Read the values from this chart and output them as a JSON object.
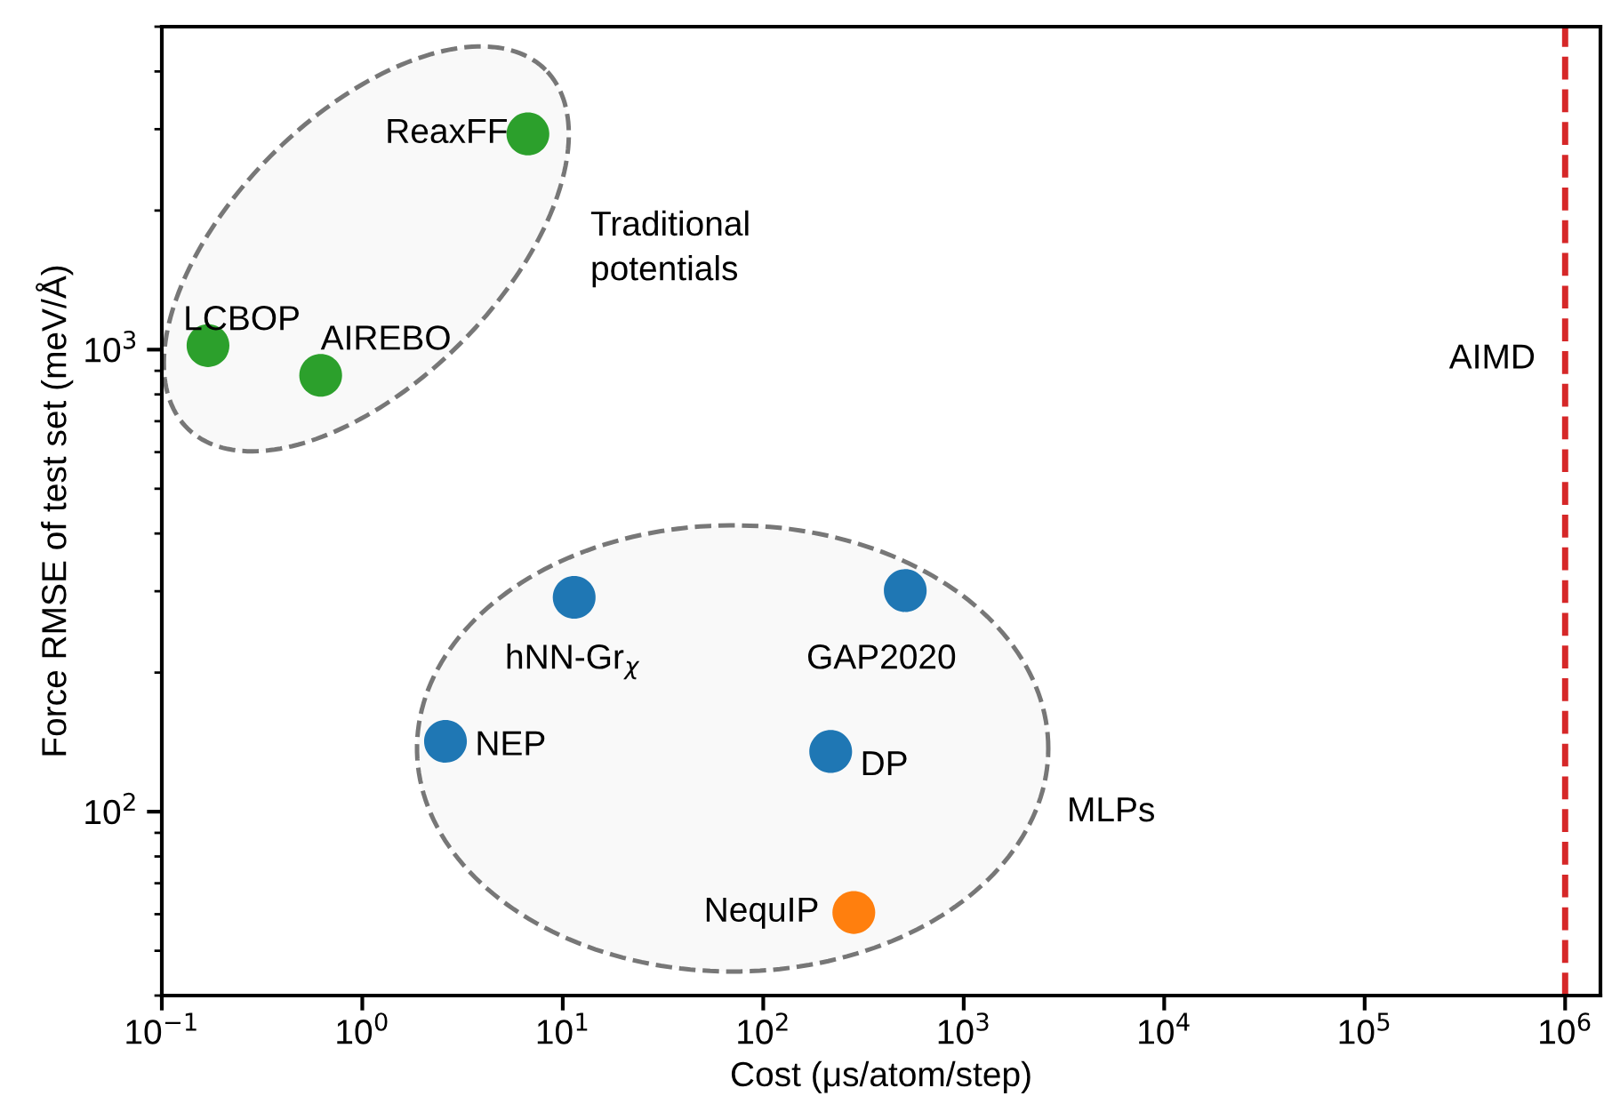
{
  "chart_data": {
    "type": "scatter",
    "xlabel": "Cost (μs/atom/step)",
    "ylabel": "Force RMSE of test set (meV/Å)",
    "log": "xy",
    "xlim": [
      0.1,
      1500000
    ],
    "ylim": [
      40,
      5000
    ],
    "xticks": [
      {
        "value": 0.1,
        "label": "10$^{−1}$"
      },
      {
        "value": 1,
        "label": "10$^{0}$"
      },
      {
        "value": 10,
        "label": "10$^{1}$"
      },
      {
        "value": 100,
        "label": "10$^{2}$"
      },
      {
        "value": 1000,
        "label": "10$^{3}$"
      },
      {
        "value": 10000,
        "label": "10$^{4}$"
      },
      {
        "value": 100000,
        "label": "10$^{5}$"
      },
      {
        "value": 1000000,
        "label": "10$^{6}$"
      }
    ],
    "yticks": [
      {
        "value": 100,
        "label": "10$^{2}$"
      },
      {
        "value": 1000,
        "label": "10$^{3}$"
      }
    ],
    "grid": false,
    "marker": "circle",
    "series": [
      {
        "name": "ReaxFF",
        "color": "#2ca02c",
        "x": [
          6.7
        ],
        "values": [
          2930
        ]
      },
      {
        "name": "LCBOP",
        "color": "#2ca02c",
        "x": [
          0.17
        ],
        "values": [
          1020
        ]
      },
      {
        "name": "AIREBO",
        "color": "#2ca02c",
        "x": [
          0.62
        ],
        "values": [
          880
        ]
      },
      {
        "name": "hNN-Gr$_{χ}$",
        "color": "#1f77b4",
        "x": [
          11.4
        ],
        "values": [
          291
        ]
      },
      {
        "name": "GAP2020",
        "color": "#1f77b4",
        "x": [
          511
        ],
        "values": [
          301
        ]
      },
      {
        "name": "NEP",
        "color": "#1f77b4",
        "x": [
          2.6
        ],
        "values": [
          142
        ]
      },
      {
        "name": "DP",
        "color": "#1f77b4",
        "x": [
          217
        ],
        "values": [
          135
        ]
      },
      {
        "name": "NequIP",
        "color": "#ff7f0e",
        "x": [
          283
        ],
        "values": [
          60.5
        ]
      }
    ],
    "ref_lines": [
      {
        "axis": "x",
        "value": 1000000,
        "label": "AIMD",
        "color": "#d62728",
        "line_style": "dashed"
      }
    ],
    "annotations": [
      "Traditional\npotentials",
      "MLPs"
    ]
  }
}
